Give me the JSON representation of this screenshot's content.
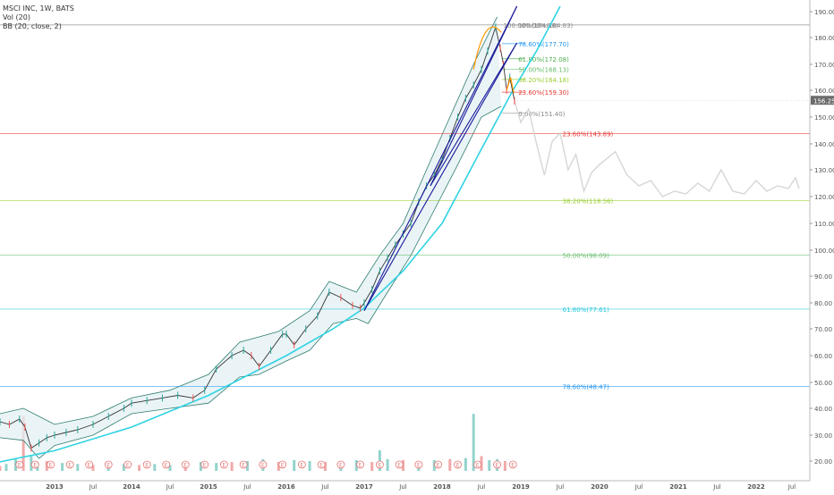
{
  "header": {
    "symbol_line": "MSCI INC, 1W, BATS",
    "volume_line": "Vol (20)",
    "bb_line": "BB (20, close, 2)"
  },
  "colors": {
    "price_up": "#26a69a",
    "price_down": "#ef5350",
    "bb_line": "#2e7d6e",
    "bb_fill": "#e3f0f4",
    "curve": "#2ed3e3",
    "trendline": "#1a1a9a",
    "arc": "#ff9800",
    "future_path": "#d6d6d6",
    "price_badge": "#6b6b6b"
  },
  "chart_data": {
    "type": "line",
    "title": "MSCI INC, 1W, BATS",
    "xlabel": "",
    "ylabel": "",
    "ylim": [
      14,
      193
    ],
    "xlim": [
      2012.3,
      2022.75
    ],
    "grid": false,
    "y_ticks": [
      "20.00",
      "30.00",
      "40.00",
      "50.00",
      "60.00",
      "70.00",
      "80.00",
      "90.00",
      "100.00",
      "110.00",
      "120.00",
      "130.00",
      "140.00",
      "150.00",
      "160.00",
      "170.00",
      "180.00",
      "190.00"
    ],
    "x_ticks": [
      {
        "label": "2013",
        "x": 2013.0
      },
      {
        "label": "Jul",
        "x": 2013.5
      },
      {
        "label": "2014",
        "x": 2014.0
      },
      {
        "label": "Jul",
        "x": 2014.5
      },
      {
        "label": "2015",
        "x": 2015.0
      },
      {
        "label": "Jul",
        "x": 2015.5
      },
      {
        "label": "2016",
        "x": 2016.0
      },
      {
        "label": "Jul",
        "x": 2016.5
      },
      {
        "label": "2017",
        "x": 2017.0
      },
      {
        "label": "Jul",
        "x": 2017.5
      },
      {
        "label": "2018",
        "x": 2018.0
      },
      {
        "label": "Jul",
        "x": 2018.5
      },
      {
        "label": "2019",
        "x": 2019.0
      },
      {
        "label": "Jul",
        "x": 2019.5
      },
      {
        "label": "2020",
        "x": 2020.0
      },
      {
        "label": "Jul",
        "x": 2020.5
      },
      {
        "label": "2021",
        "x": 2021.0
      },
      {
        "label": "Jul",
        "x": 2021.5
      },
      {
        "label": "2022",
        "x": 2022.0
      },
      {
        "label": "Jul",
        "x": 2022.5
      }
    ],
    "last_price": {
      "label": "156.25",
      "value": 156.25
    },
    "price_series": [
      [
        2012.3,
        35
      ],
      [
        2012.42,
        34
      ],
      [
        2012.55,
        36
      ],
      [
        2012.62,
        33
      ],
      [
        2012.7,
        25
      ],
      [
        2012.8,
        27
      ],
      [
        2012.9,
        29
      ],
      [
        2013.0,
        30
      ],
      [
        2013.15,
        31
      ],
      [
        2013.3,
        32
      ],
      [
        2013.5,
        34
      ],
      [
        2013.7,
        37
      ],
      [
        2013.9,
        40
      ],
      [
        2014.0,
        42
      ],
      [
        2014.2,
        43
      ],
      [
        2014.4,
        44
      ],
      [
        2014.6,
        45
      ],
      [
        2014.8,
        44
      ],
      [
        2014.95,
        47
      ],
      [
        2015.1,
        55
      ],
      [
        2015.3,
        60
      ],
      [
        2015.45,
        62
      ],
      [
        2015.55,
        60
      ],
      [
        2015.65,
        56
      ],
      [
        2015.8,
        62
      ],
      [
        2015.95,
        68
      ],
      [
        2016.0,
        68
      ],
      [
        2016.1,
        64
      ],
      [
        2016.25,
        70
      ],
      [
        2016.4,
        75
      ],
      [
        2016.55,
        84
      ],
      [
        2016.7,
        82
      ],
      [
        2016.85,
        79
      ],
      [
        2016.95,
        78
      ],
      [
        2017.0,
        80
      ],
      [
        2017.1,
        85
      ],
      [
        2017.2,
        92
      ],
      [
        2017.3,
        97
      ],
      [
        2017.4,
        102
      ],
      [
        2017.5,
        106
      ],
      [
        2017.6,
        110
      ],
      [
        2017.7,
        118
      ],
      [
        2017.8,
        124
      ],
      [
        2017.9,
        128
      ],
      [
        2018.0,
        134
      ],
      [
        2018.1,
        142
      ],
      [
        2018.2,
        150
      ],
      [
        2018.3,
        157
      ],
      [
        2018.4,
        162
      ],
      [
        2018.5,
        168
      ],
      [
        2018.58,
        175
      ],
      [
        2018.68,
        184
      ],
      [
        2018.74,
        176
      ],
      [
        2018.78,
        170
      ],
      [
        2018.82,
        160
      ],
      [
        2018.86,
        165
      ],
      [
        2018.92,
        156
      ]
    ],
    "projection_series": [
      [
        2018.92,
        156
      ],
      [
        2019.0,
        148
      ],
      [
        2019.1,
        153
      ],
      [
        2019.2,
        140
      ],
      [
        2019.3,
        128
      ],
      [
        2019.4,
        141
      ],
      [
        2019.5,
        144
      ],
      [
        2019.6,
        130
      ],
      [
        2019.7,
        136
      ],
      [
        2019.8,
        122
      ],
      [
        2019.9,
        129
      ],
      [
        2020.0,
        132
      ],
      [
        2020.2,
        137
      ],
      [
        2020.35,
        128
      ],
      [
        2020.5,
        124
      ],
      [
        2020.65,
        126
      ],
      [
        2020.8,
        120
      ],
      [
        2020.95,
        122
      ],
      [
        2021.1,
        121
      ],
      [
        2021.25,
        125
      ],
      [
        2021.4,
        122
      ],
      [
        2021.55,
        130
      ],
      [
        2021.7,
        122
      ],
      [
        2021.85,
        121
      ],
      [
        2022.0,
        126
      ],
      [
        2022.15,
        122
      ],
      [
        2022.3,
        124
      ],
      [
        2022.45,
        123
      ],
      [
        2022.55,
        127
      ],
      [
        2022.6,
        123
      ]
    ],
    "bollinger_upper": [
      [
        2012.3,
        38
      ],
      [
        2012.6,
        40
      ],
      [
        2012.8,
        37
      ],
      [
        2013.0,
        34
      ],
      [
        2013.5,
        37
      ],
      [
        2014.0,
        44
      ],
      [
        2014.5,
        47
      ],
      [
        2015.0,
        53
      ],
      [
        2015.4,
        65
      ],
      [
        2015.9,
        69
      ],
      [
        2016.3,
        77
      ],
      [
        2016.55,
        88
      ],
      [
        2016.9,
        84
      ],
      [
        2017.2,
        98
      ],
      [
        2017.5,
        110
      ],
      [
        2017.8,
        130
      ],
      [
        2018.1,
        150
      ],
      [
        2018.4,
        170
      ],
      [
        2018.6,
        182
      ],
      [
        2018.7,
        188
      ]
    ],
    "bollinger_lower": [
      [
        2012.3,
        29
      ],
      [
        2012.6,
        28
      ],
      [
        2012.8,
        21
      ],
      [
        2013.0,
        26
      ],
      [
        2013.5,
        30
      ],
      [
        2014.0,
        38
      ],
      [
        2014.5,
        40
      ],
      [
        2015.0,
        42
      ],
      [
        2015.4,
        52
      ],
      [
        2015.65,
        53
      ],
      [
        2016.0,
        58
      ],
      [
        2016.3,
        62
      ],
      [
        2016.6,
        72
      ],
      [
        2016.9,
        74
      ],
      [
        2017.05,
        72
      ],
      [
        2017.3,
        84
      ],
      [
        2017.6,
        98
      ],
      [
        2017.9,
        115
      ],
      [
        2018.2,
        132
      ],
      [
        2018.5,
        150
      ],
      [
        2018.75,
        154
      ]
    ],
    "fibonacci_levels": [
      {
        "label": "100.00%(184.88)",
        "value": 184.88,
        "color": "#888888",
        "x_start": 2012.3
      },
      {
        "label": "78.60%(177.70)",
        "value": 177.7,
        "color": "#2196f3",
        "x_start": 2018.76
      },
      {
        "label": "61.80%(172.08)",
        "value": 172.08,
        "color": "#4caf50",
        "x_start": 2018.76
      },
      {
        "label": "50.00%(168.13)",
        "value": 168.13,
        "color": "#66bb6a",
        "x_start": 2018.76
      },
      {
        "label": "38.20%(164.18)",
        "value": 164.18,
        "color": "#9acd32",
        "x_start": 2018.76
      },
      {
        "label": "23.60%(159.30)",
        "value": 159.3,
        "color": "#e53935",
        "x_start": 2018.76
      },
      {
        "label": "0.00%(151.40)",
        "value": 151.4,
        "color": "#888888",
        "x_start": 2018.76
      },
      {
        "label": "23.60%(143.89)",
        "value": 143.89,
        "color": "#e53935",
        "x_start": 2012.3
      },
      {
        "label": "38.20%(118.56)",
        "value": 118.56,
        "color": "#9acd32",
        "x_start": 2012.3
      },
      {
        "label": "50.00%(98.09)",
        "value": 98.09,
        "color": "#66bb6a",
        "x_start": 2012.3
      },
      {
        "label": "61.80%(77.61)",
        "value": 77.61,
        "color": "#26c6da",
        "x_start": 2012.3
      },
      {
        "label": "78.60%(48.47)",
        "value": 48.47,
        "color": "#2196f3",
        "x_start": 2012.3
      },
      {
        "label": "100.00%(184.83)",
        "value": 184.83,
        "color": "#888888",
        "x_start": 2018.9
      }
    ],
    "trendlines": [
      {
        "from": [
          2017.0,
          77
        ],
        "to": [
          2018.95,
          192
        ]
      },
      {
        "from": [
          2017.0,
          77
        ],
        "to": [
          2018.95,
          178
        ]
      },
      {
        "from": [
          2017.85,
          124
        ],
        "to": [
          2018.95,
          192
        ]
      },
      {
        "from": [
          2017.85,
          124
        ],
        "to": [
          2018.95,
          178
        ]
      }
    ],
    "parabolic_curve": [
      [
        2012.3,
        19.5
      ],
      [
        2013.0,
        24
      ],
      [
        2014.0,
        33
      ],
      [
        2015.0,
        45
      ],
      [
        2016.0,
        60
      ],
      [
        2016.6,
        70
      ],
      [
        2017.0,
        78
      ],
      [
        2017.5,
        92
      ],
      [
        2018.0,
        110
      ],
      [
        2018.5,
        138
      ],
      [
        2018.9,
        160
      ],
      [
        2019.2,
        175
      ],
      [
        2019.5,
        192
      ]
    ],
    "volume": [
      [
        "2012.3",
        5
      ],
      [
        "2012.38",
        7
      ],
      [
        "2012.5",
        12
      ],
      [
        "2012.6",
        56
      ],
      [
        "2012.7",
        15
      ],
      [
        "2012.78",
        9
      ],
      [
        "2012.9",
        10
      ],
      [
        "2013.1",
        8
      ],
      [
        "2013.3",
        7
      ],
      [
        "2013.5",
        6
      ],
      [
        "2013.7",
        8
      ],
      [
        "2013.9",
        7
      ],
      [
        "2014.1",
        6
      ],
      [
        "2014.3",
        7
      ],
      [
        "2014.5",
        6
      ],
      [
        "2014.7",
        8
      ],
      [
        "2014.9",
        9
      ],
      [
        "2015.1",
        8
      ],
      [
        "2015.3",
        9
      ],
      [
        "2015.5",
        10
      ],
      [
        "2015.7",
        12
      ],
      [
        "2015.9",
        9
      ],
      [
        "2016.1",
        11
      ],
      [
        "2016.3",
        10
      ],
      [
        "2016.5",
        9
      ],
      [
        "2016.7",
        10
      ],
      [
        "2016.9",
        11
      ],
      [
        "2017.1",
        9
      ],
      [
        "2017.2",
        21
      ],
      [
        "2017.3",
        12
      ],
      [
        "2017.5",
        11
      ],
      [
        "2017.7",
        10
      ],
      [
        "2017.9",
        11
      ],
      [
        "2018.1",
        12
      ],
      [
        "2018.3",
        13
      ],
      [
        "2018.4",
        58
      ],
      [
        "2018.5",
        15
      ],
      [
        "2018.6",
        11
      ],
      [
        "2018.7",
        12
      ],
      [
        "2018.8",
        10
      ]
    ],
    "earnings_markers": [
      2012.55,
      2012.75,
      2012.95,
      2013.2,
      2013.45,
      2013.7,
      2013.95,
      2014.2,
      2014.45,
      2014.7,
      2014.95,
      2015.2,
      2015.45,
      2015.7,
      2015.95,
      2016.2,
      2016.45,
      2016.7,
      2016.95,
      2017.2,
      2017.45,
      2017.7,
      2017.95,
      2018.2,
      2018.45,
      2018.7,
      2018.9
    ],
    "earnings_label": "E"
  }
}
